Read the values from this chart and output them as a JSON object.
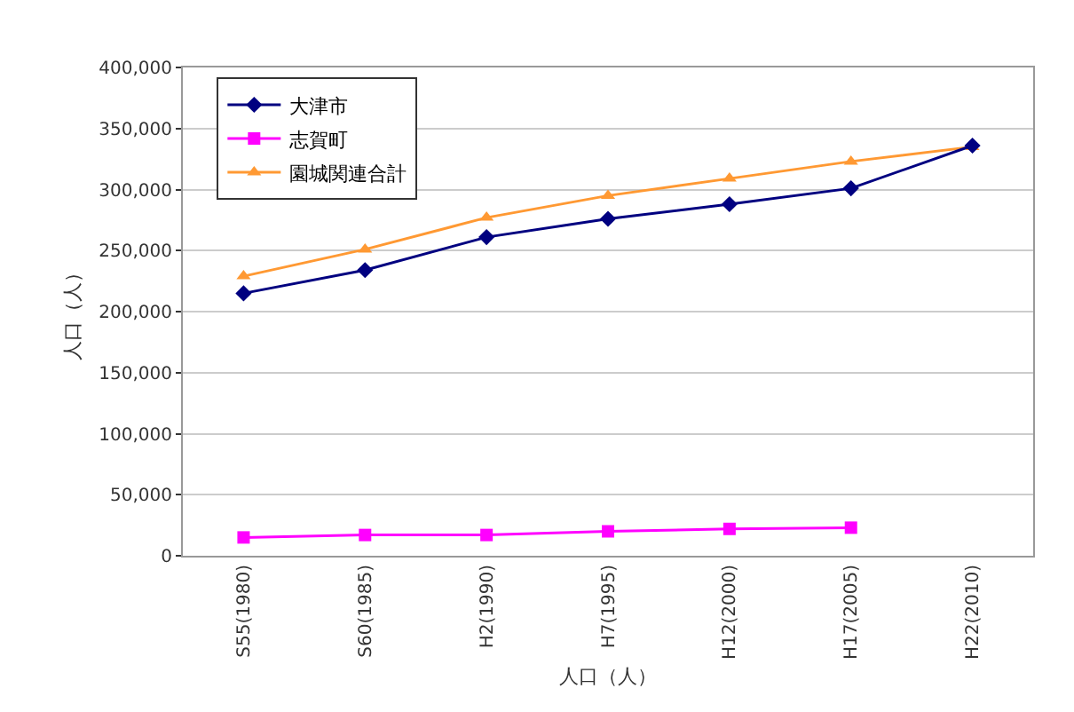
{
  "chart_data": {
    "type": "line",
    "xlabel": "人口（人）",
    "ylabel": "人口（人）",
    "categories": [
      "S55(1980)",
      "S60(1985)",
      "H2(1990)",
      "H7(1995)",
      "H12(2000)",
      "H17(2005)",
      "H22(2010)"
    ],
    "series": [
      {
        "name": "大津市",
        "color": "#000080",
        "marker": "diamond",
        "values": [
          215000,
          234000,
          261000,
          276000,
          288000,
          301000,
          336000
        ]
      },
      {
        "name": "志賀町",
        "color": "#ff00ff",
        "marker": "square",
        "values": [
          15000,
          17000,
          17000,
          20000,
          22000,
          23000,
          null
        ]
      },
      {
        "name": "園城関連合計",
        "color": "#ff9933",
        "marker": "triangle",
        "values": [
          229000,
          251000,
          277000,
          295000,
          309000,
          323000,
          335000
        ]
      }
    ],
    "ylim": [
      0,
      400000
    ],
    "yticks": [
      {
        "value": 0,
        "label": "0"
      },
      {
        "value": 50000,
        "label": "50,000"
      },
      {
        "value": 100000,
        "label": "100,000"
      },
      {
        "value": 150000,
        "label": "150,000"
      },
      {
        "value": 200000,
        "label": "200,000"
      },
      {
        "value": 250000,
        "label": "250,000"
      },
      {
        "value": 300000,
        "label": "300,000"
      },
      {
        "value": 350000,
        "label": "350,000"
      },
      {
        "value": 400000,
        "label": "400,000"
      }
    ],
    "grid": "y",
    "legend": "top left",
    "line_style": "solid"
  }
}
